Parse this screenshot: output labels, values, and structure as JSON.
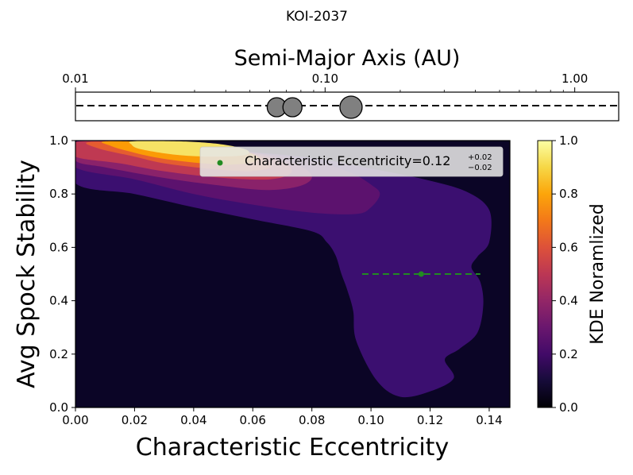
{
  "chart_data": [
    {
      "type": "scatter",
      "title": "KOI-2037",
      "xlabel": "Semi-Major Axis (AU)",
      "x_scale": "log",
      "xlim": [
        0.01,
        1.5
      ],
      "x_ticks": [
        0.01,
        0.1,
        1.0
      ],
      "x_tick_labels": [
        "0.01",
        "0.10",
        "1.00"
      ],
      "points": [
        0.064,
        0.074,
        0.127
      ],
      "line_style": "dashed",
      "marker_color": "#808080"
    },
    {
      "type": "heatmap",
      "subtype": "filled-contour",
      "xlabel": "Characteristic Eccentricity",
      "ylabel": "Avg Spock Stability",
      "xlim": [
        0.0,
        0.147
      ],
      "ylim": [
        0.0,
        1.0
      ],
      "x_ticks": [
        0.0,
        0.02,
        0.04,
        0.06,
        0.08,
        0.1,
        0.12,
        0.14
      ],
      "x_tick_labels": [
        "0.00",
        "0.02",
        "0.04",
        "0.06",
        "0.08",
        "0.10",
        "0.12",
        "0.14"
      ],
      "y_ticks": [
        0.0,
        0.2,
        0.4,
        0.6,
        0.8,
        1.0
      ],
      "y_tick_labels": [
        "0.0",
        "0.2",
        "0.4",
        "0.6",
        "0.8",
        "1.0"
      ],
      "colormap": "inferno",
      "colorbar": {
        "label": "KDE Noramlized",
        "range": [
          0.0,
          1.0
        ],
        "ticks": [
          0.0,
          0.2,
          0.4,
          0.6,
          0.8,
          1.0
        ],
        "tick_labels": [
          "0.0",
          "0.2",
          "0.4",
          "0.6",
          "0.8",
          "1.0"
        ]
      },
      "contour_levels": [
        {
          "level": 0.1,
          "color": "#3b0f70",
          "points": [
            [
              0.0,
              0.995
            ],
            [
              0.02,
              0.985
            ],
            [
              0.05,
              0.965
            ],
            [
              0.08,
              0.935
            ],
            [
              0.1,
              0.895
            ],
            [
              0.118,
              0.855
            ],
            [
              0.132,
              0.81
            ],
            [
              0.14,
              0.74
            ],
            [
              0.14,
              0.62
            ],
            [
              0.136,
              0.565
            ],
            [
              0.134,
              0.525
            ],
            [
              0.137,
              0.47
            ],
            [
              0.138,
              0.385
            ],
            [
              0.136,
              0.28
            ],
            [
              0.13,
              0.22
            ],
            [
              0.125,
              0.18
            ],
            [
              0.128,
              0.11
            ],
            [
              0.12,
              0.06
            ],
            [
              0.11,
              0.04
            ],
            [
              0.102,
              0.1
            ],
            [
              0.095,
              0.25
            ],
            [
              0.094,
              0.36
            ],
            [
              0.092,
              0.44
            ],
            [
              0.09,
              0.5
            ],
            [
              0.088,
              0.57
            ],
            [
              0.085,
              0.62
            ],
            [
              0.08,
              0.66
            ],
            [
              0.06,
              0.705
            ],
            [
              0.04,
              0.75
            ],
            [
              0.02,
              0.8
            ],
            [
              0.0,
              0.84
            ]
          ]
        },
        {
          "level": 0.2,
          "color": "#5c126e",
          "points": [
            [
              0.0,
              0.995
            ],
            [
              0.03,
              0.985
            ],
            [
              0.06,
              0.955
            ],
            [
              0.08,
              0.925
            ],
            [
              0.093,
              0.88
            ],
            [
              0.1,
              0.835
            ],
            [
              0.103,
              0.8
            ],
            [
              0.1,
              0.75
            ],
            [
              0.095,
              0.725
            ],
            [
              0.08,
              0.73
            ],
            [
              0.06,
              0.76
            ],
            [
              0.04,
              0.8
            ],
            [
              0.02,
              0.855
            ],
            [
              0.0,
              0.9
            ]
          ]
        },
        {
          "level": 0.35,
          "color": "#8a226a",
          "points": [
            [
              0.0,
              0.995
            ],
            [
              0.03,
              0.985
            ],
            [
              0.06,
              0.955
            ],
            [
              0.075,
              0.91
            ],
            [
              0.08,
              0.865
            ],
            [
              0.076,
              0.83
            ],
            [
              0.065,
              0.815
            ],
            [
              0.05,
              0.83
            ],
            [
              0.03,
              0.86
            ],
            [
              0.01,
              0.9
            ],
            [
              0.0,
              0.925
            ]
          ]
        },
        {
          "level": 0.5,
          "color": "#bf3952",
          "points": [
            [
              0.0,
              0.995
            ],
            [
              0.03,
              0.985
            ],
            [
              0.055,
              0.96
            ],
            [
              0.07,
              0.92
            ],
            [
              0.073,
              0.88
            ],
            [
              0.066,
              0.855
            ],
            [
              0.05,
              0.86
            ],
            [
              0.03,
              0.885
            ],
            [
              0.015,
              0.915
            ],
            [
              0.0,
              0.94
            ]
          ]
        },
        {
          "level": 0.65,
          "color": "#e55c30",
          "points": [
            [
              0.005,
              0.995
            ],
            [
              0.03,
              0.99
            ],
            [
              0.05,
              0.97
            ],
            [
              0.063,
              0.935
            ],
            [
              0.066,
              0.9
            ],
            [
              0.058,
              0.885
            ],
            [
              0.045,
              0.895
            ],
            [
              0.03,
              0.915
            ],
            [
              0.02,
              0.94
            ],
            [
              0.008,
              0.97
            ]
          ]
        },
        {
          "level": 0.8,
          "color": "#fb9b06",
          "points": [
            [
              0.01,
              0.997
            ],
            [
              0.03,
              0.993
            ],
            [
              0.048,
              0.978
            ],
            [
              0.06,
              0.95
            ],
            [
              0.061,
              0.922
            ],
            [
              0.052,
              0.91
            ],
            [
              0.04,
              0.918
            ],
            [
              0.028,
              0.935
            ],
            [
              0.018,
              0.96
            ],
            [
              0.012,
              0.98
            ]
          ]
        },
        {
          "level": 0.92,
          "color": "#f6e265",
          "points": [
            [
              0.02,
              0.998
            ],
            [
              0.038,
              0.996
            ],
            [
              0.05,
              0.985
            ],
            [
              0.058,
              0.965
            ],
            [
              0.057,
              0.945
            ],
            [
              0.045,
              0.94
            ],
            [
              0.033,
              0.948
            ],
            [
              0.022,
              0.968
            ],
            [
              0.019,
              0.985
            ]
          ]
        }
      ],
      "series": [
        {
          "name": "Characteristic Eccentricity=0.12",
          "x": [
            0.117
          ],
          "y": [
            0.5
          ],
          "x_err_plus": 0.02,
          "x_err_minus": 0.02,
          "color": "#228b22"
        }
      ],
      "legend": {
        "position": "top-right",
        "label_main": "Characteristic Eccentricity=0.12",
        "sup": "+0.02",
        "sub": "−0.02"
      }
    }
  ]
}
